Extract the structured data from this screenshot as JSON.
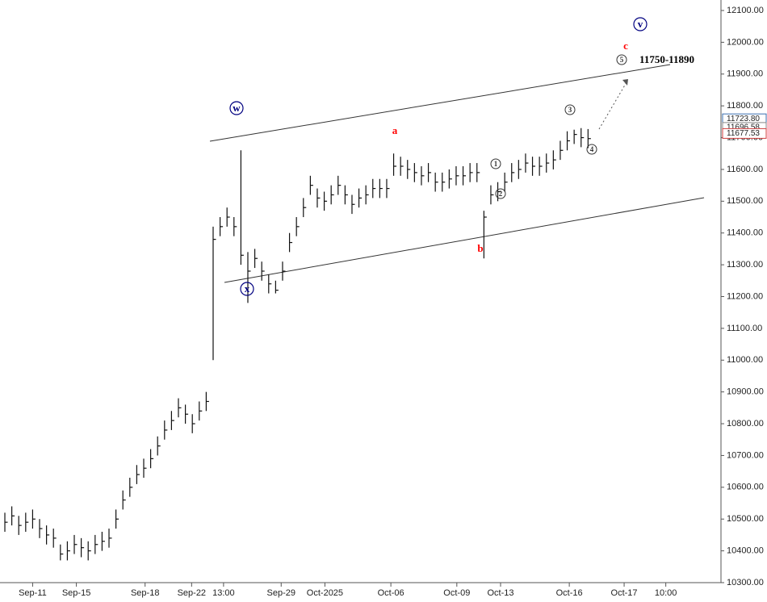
{
  "chart_data": {
    "type": "ohlc",
    "x": [
      0,
      1,
      2,
      3,
      4,
      5,
      6,
      7,
      8,
      9,
      10,
      11,
      12,
      13,
      14,
      15,
      16,
      17,
      18,
      19,
      20,
      21,
      22,
      23,
      24,
      25,
      26,
      27,
      28,
      29,
      30,
      31,
      32,
      33,
      34,
      35,
      36,
      37,
      38,
      39,
      40,
      41,
      42,
      43,
      44,
      45,
      46,
      47,
      48,
      49,
      50,
      51,
      52,
      53,
      54,
      55,
      56,
      57,
      58,
      59,
      60,
      61,
      62,
      63,
      64,
      65,
      66,
      67,
      68,
      69,
      70,
      71,
      72,
      73,
      74,
      75,
      76,
      77,
      78,
      79,
      80,
      81,
      82,
      83,
      84
    ],
    "high": [
      10520,
      10540,
      10510,
      10520,
      10530,
      10500,
      10480,
      10470,
      10420,
      10430,
      10450,
      10440,
      10430,
      10450,
      10460,
      10470,
      10530,
      10590,
      10630,
      10670,
      10690,
      10720,
      10760,
      10810,
      10840,
      10880,
      10860,
      10830,
      10870,
      10900,
      11420,
      11450,
      11480,
      11450,
      11660,
      11340,
      11350,
      11310,
      11270,
      11250,
      11310,
      11400,
      11450,
      11510,
      11580,
      11540,
      11530,
      11550,
      11580,
      11550,
      11520,
      11540,
      11550,
      11570,
      11570,
      11570,
      11650,
      11640,
      11630,
      11620,
      11610,
      11620,
      11590,
      11590,
      11600,
      11610,
      11610,
      11620,
      11620,
      11470,
      11550,
      11560,
      11590,
      11620,
      11630,
      11650,
      11640,
      11640,
      11650,
      11660,
      11690,
      11720,
      11725,
      11730,
      11727
    ],
    "low": [
      10460,
      10480,
      10450,
      10460,
      10470,
      10440,
      10420,
      10410,
      10370,
      10370,
      10390,
      10380,
      10370,
      10390,
      10400,
      10410,
      10470,
      10530,
      10570,
      10610,
      10630,
      10660,
      10700,
      10750,
      10780,
      10820,
      10800,
      10770,
      10810,
      10840,
      11000,
      11390,
      11420,
      11390,
      11300,
      11180,
      11290,
      11250,
      11210,
      11210,
      11250,
      11340,
      11390,
      11450,
      11520,
      11480,
      11470,
      11490,
      11520,
      11490,
      11460,
      11480,
      11490,
      11510,
      11510,
      11510,
      11580,
      11580,
      11570,
      11560,
      11550,
      11560,
      11530,
      11530,
      11540,
      11550,
      11550,
      11560,
      11560,
      11320,
      11490,
      11500,
      11530,
      11560,
      11570,
      11590,
      11580,
      11580,
      11590,
      11600,
      11630,
      11660,
      11680,
      11670,
      11667
    ],
    "close": [
      10490,
      10510,
      10480,
      10490,
      10500,
      10470,
      10450,
      10440,
      10390,
      10400,
      10420,
      10410,
      10400,
      10420,
      10430,
      10440,
      10500,
      10560,
      10600,
      10640,
      10660,
      10690,
      10730,
      10780,
      10810,
      10850,
      10830,
      10800,
      10840,
      10870,
      11380,
      11420,
      11450,
      11420,
      11330,
      11280,
      11320,
      11280,
      11240,
      11220,
      11280,
      11370,
      11420,
      11480,
      11550,
      11510,
      11500,
      11520,
      11550,
      11520,
      11490,
      11510,
      11520,
      11540,
      11540,
      11540,
      11610,
      11610,
      11600,
      11590,
      11580,
      11590,
      11560,
      11560,
      11570,
      11580,
      11580,
      11590,
      11590,
      11450,
      11520,
      11530,
      11560,
      11590,
      11600,
      11620,
      11610,
      11610,
      11620,
      11630,
      11660,
      11690,
      11710,
      11700,
      11697
    ],
    "color": "#111111",
    "xlim": [
      -0.7,
      102.8
    ],
    "xticks": [
      {
        "value": 4,
        "label": "Sep-11"
      },
      {
        "value": 10.3,
        "label": "Sep-15"
      },
      {
        "value": 20.2,
        "label": "Sep-18"
      },
      {
        "value": 26.9,
        "label": "Sep-22"
      },
      {
        "value": 31.5,
        "label": "13:00"
      },
      {
        "value": 39.8,
        "label": "Sep-29"
      },
      {
        "value": 46.1,
        "label": "Oct-2025"
      },
      {
        "value": 55.6,
        "label": "Oct-06"
      },
      {
        "value": 65.1,
        "label": "Oct-09"
      },
      {
        "value": 71.4,
        "label": "Oct-13"
      },
      {
        "value": 81.3,
        "label": "Oct-16"
      },
      {
        "value": 89.2,
        "label": "Oct-17"
      },
      {
        "value": 95.2,
        "label": "10:00"
      }
    ],
    "ylim": [
      10300,
      12100
    ],
    "yticks": [
      {
        "value": 10300,
        "label": "10300.00"
      },
      {
        "value": 10400,
        "label": "10400.00"
      },
      {
        "value": 10500,
        "label": "10500.00"
      },
      {
        "value": 10600,
        "label": "10600.00"
      },
      {
        "value": 10700,
        "label": "10700.00"
      },
      {
        "value": 10800,
        "label": "10800.00"
      },
      {
        "value": 10900,
        "label": "10900.00"
      },
      {
        "value": 11000,
        "label": "11000.00"
      },
      {
        "value": 11100,
        "label": "11100.00"
      },
      {
        "value": 11200,
        "label": "11200.00"
      },
      {
        "value": 11300,
        "label": "11300.00"
      },
      {
        "value": 11400,
        "label": "11400.00"
      },
      {
        "value": 11500,
        "label": "11500.00"
      },
      {
        "value": 11600,
        "label": "11600.00"
      },
      {
        "value": 11700,
        "label": "11700.00"
      },
      {
        "value": 11800,
        "label": "11800.00"
      },
      {
        "value": 11900,
        "label": "11900.00"
      },
      {
        "value": 12000,
        "label": "12000.00"
      },
      {
        "value": 12100,
        "label": "12100.00"
      }
    ],
    "price_labels": [
      {
        "value": 11723.8,
        "label": "11723.80",
        "color": "#3a6fb0"
      },
      {
        "value": 11696.58,
        "label": "11696.58",
        "color": "#888888"
      },
      {
        "value": 11677.53,
        "label": "11677.53",
        "color": "#d04040"
      }
    ],
    "annotations": [
      "w",
      "x",
      "v",
      "a",
      "b",
      "c",
      "1",
      "2",
      "3",
      "4",
      "5",
      "11750-11890"
    ]
  }
}
